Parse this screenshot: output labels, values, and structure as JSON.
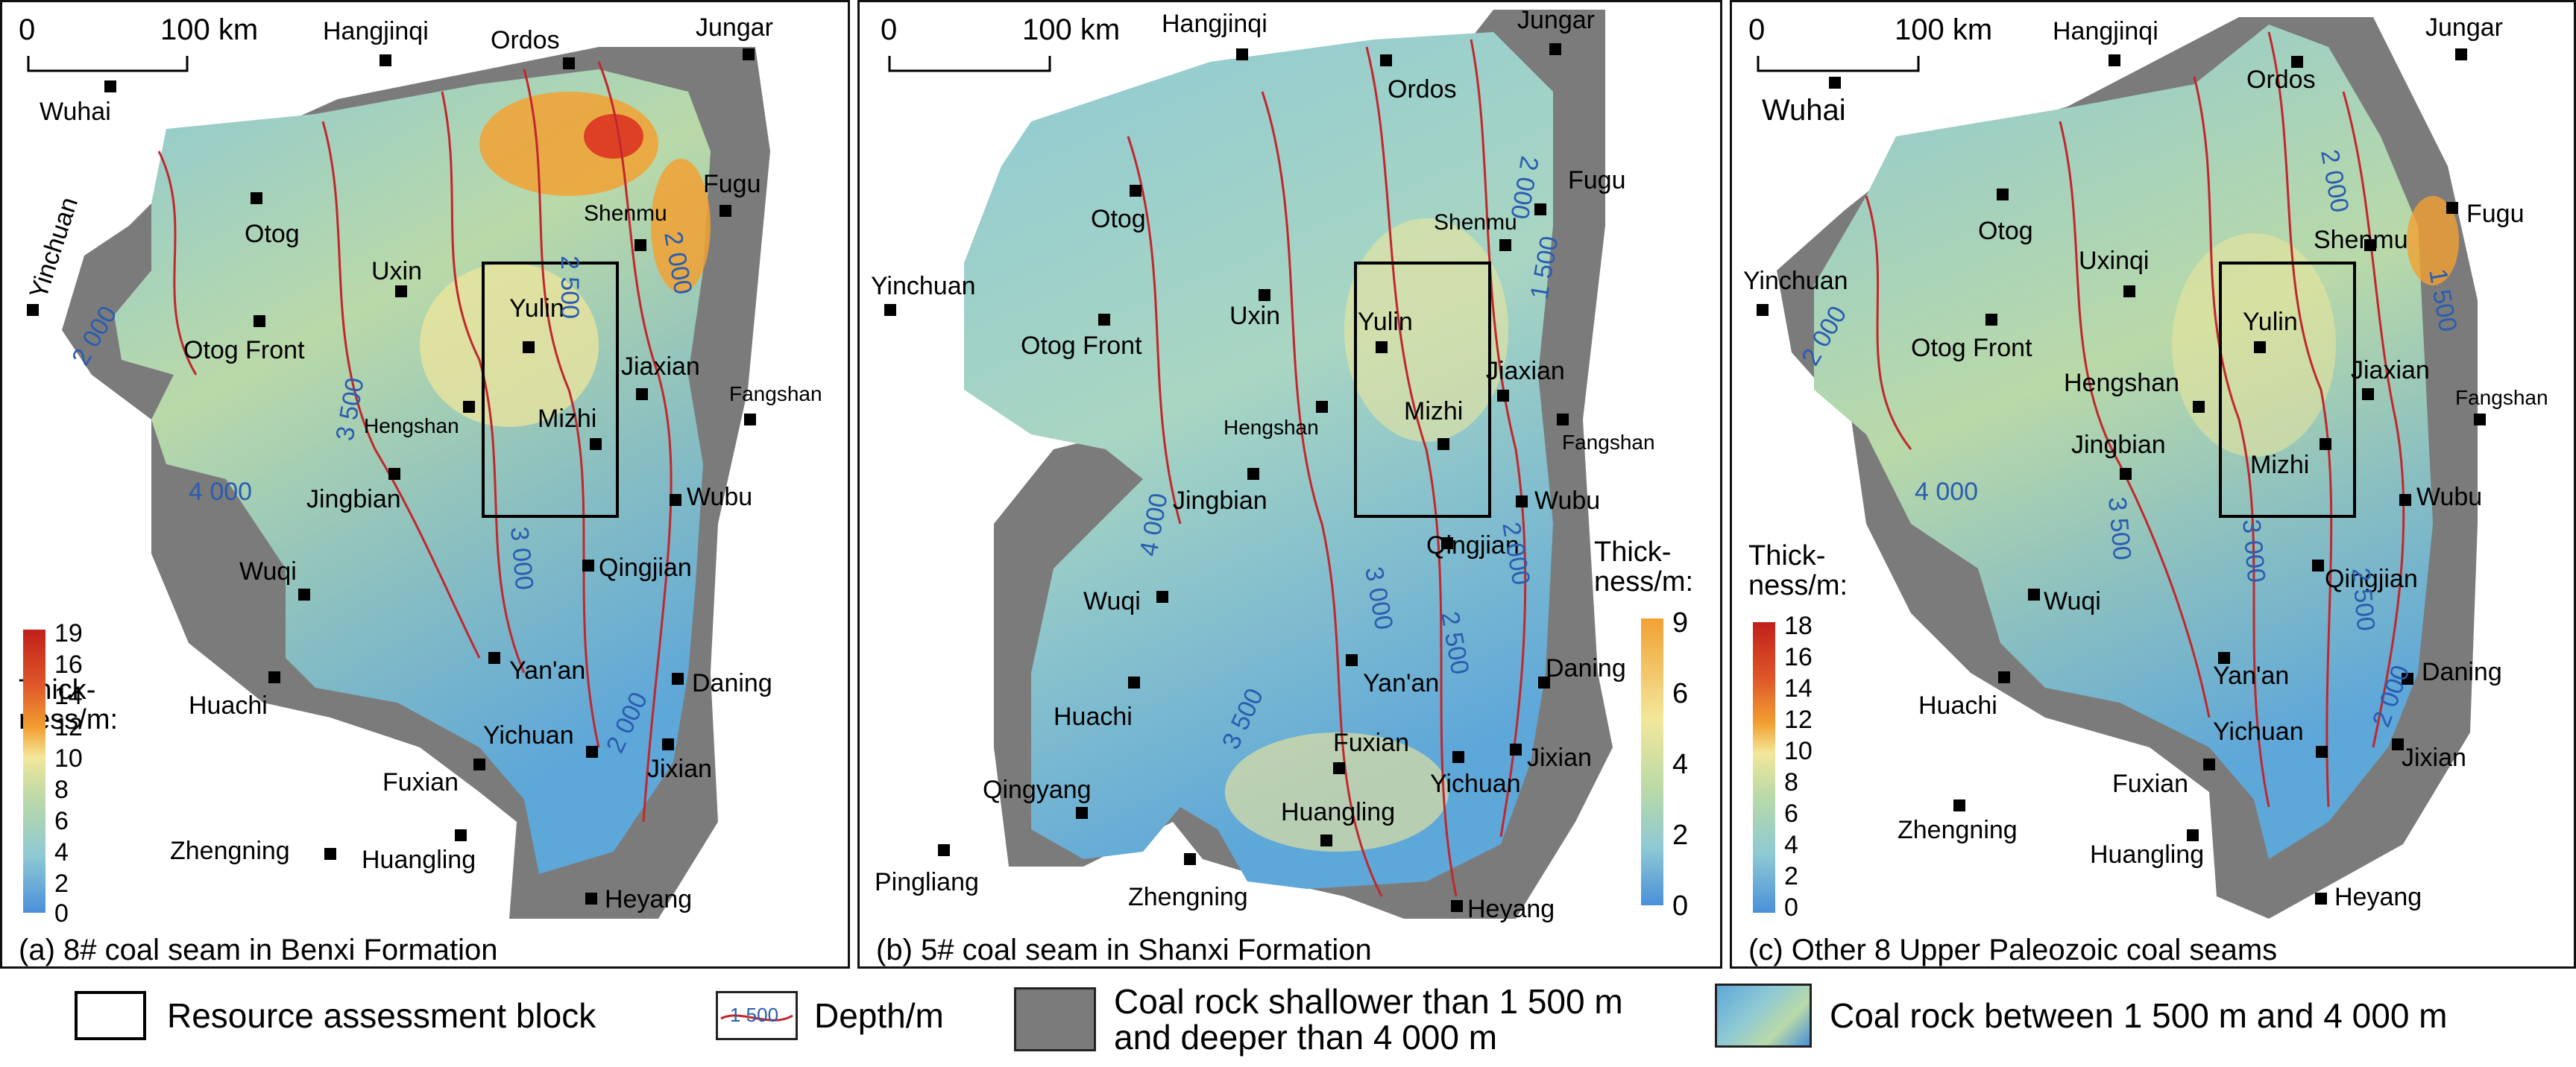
{
  "panels": [
    {
      "caption": "(a) 8# coal seam in Benxi Formation",
      "thickness_title_1": "Thick-",
      "thickness_title_2": "ness/m:",
      "colorbar_ticks": [
        "19",
        "16",
        "14",
        "12",
        "10",
        "8",
        "6",
        "4",
        "2",
        "0"
      ],
      "scale_zero": "0",
      "scale_km": "100 km",
      "cities": [
        "Wuhai",
        "Hangjinqi",
        "Ordos",
        "Jungar",
        "Yinchuan",
        "Otog",
        "Fugu",
        "Shenmu",
        "Uxin",
        "Otog Front",
        "Yulin",
        "Jiaxian",
        "Fangshan",
        "Hengshan",
        "Mizhi",
        "Jingbian",
        "Wubu",
        "Qingjian",
        "Wuqi",
        "Yan'an",
        "Daning",
        "Huachi",
        "Yichuan",
        "Jixian",
        "Fuxian",
        "Zhengning",
        "Huangling",
        "Heyang"
      ],
      "depths": [
        "2 000",
        "2 500",
        "2 000",
        "3 500",
        "4 000",
        "3 000",
        "2 000"
      ]
    },
    {
      "caption": "(b) 5# coal seam in Shanxi Formation",
      "thickness_title_1": "Thick-",
      "thickness_title_2": "ness/m:",
      "colorbar_ticks": [
        "9",
        "6",
        "4",
        "2",
        "0"
      ],
      "scale_zero": "0",
      "scale_km": "100 km",
      "cities": [
        "Hangjinqi",
        "Jungar",
        "Ordos",
        "Fugu",
        "Otog",
        "Shenmu",
        "Yinchuan",
        "Uxin",
        "Yulin",
        "Otog Front",
        "Jiaxian",
        "Hengshan",
        "Mizhi",
        "Fangshan",
        "Jingbian",
        "Wubu",
        "Qingjian",
        "Wuqi",
        "Daning",
        "Yan'an",
        "Huachi",
        "Fuxian",
        "Jixian",
        "Qingyang",
        "Yichuan",
        "Huangling",
        "Pingliang",
        "Zhengning",
        "Heyang"
      ],
      "depths": [
        "2 000",
        "1 500",
        "4 000",
        "2 000",
        "3 000",
        "2 500",
        "3 500"
      ]
    },
    {
      "caption": "(c) Other 8 Upper Paleozoic coal seams",
      "thickness_title_1": "Thick-",
      "thickness_title_2": "ness/m:",
      "colorbar_ticks": [
        "18",
        "16",
        "14",
        "12",
        "10",
        "8",
        "6",
        "4",
        "2",
        "0"
      ],
      "scale_zero": "0",
      "scale_km": "100 km",
      "cities": [
        "Hangjinqi",
        "Jungar",
        "Wuhai",
        "Ordos",
        "Fugu",
        "Otog",
        "Shenmu",
        "Yinchuan",
        "Uxinqi",
        "Otog Front",
        "Yulin",
        "Jiaxian",
        "Hengshan",
        "Fangshan",
        "Jingbian",
        "Mizhi",
        "Wubu",
        "Qingjian",
        "Wuqi",
        "Daning",
        "Yan'an",
        "Huachi",
        "Yichuan",
        "Jixian",
        "Fuxian",
        "Zhengning",
        "Huangling",
        "Heyang"
      ],
      "depths": [
        "2 000",
        "2 000",
        "1 500",
        "4 000",
        "3 500",
        "3 000",
        "2 500",
        "2 000"
      ]
    }
  ],
  "legend": {
    "block": "Resource assessment block",
    "depth_sample": "1 500",
    "depth": "Depth/m",
    "shallow_1": "Coal rock shallower than 1 500 m",
    "shallow_2": "and deeper than 4 000 m",
    "between": "Coal rock between 1 500 m and 4 000 m"
  },
  "colors": {
    "outside": "#7b7b7b",
    "low": "#4a90d9",
    "mid": "#8ec9d4",
    "green": "#b9d9a8",
    "yellow": "#f3e79a",
    "orange": "#f2a132",
    "red": "#d9261c",
    "contour": "#c1272d",
    "depth_label": "#2a5db0"
  }
}
